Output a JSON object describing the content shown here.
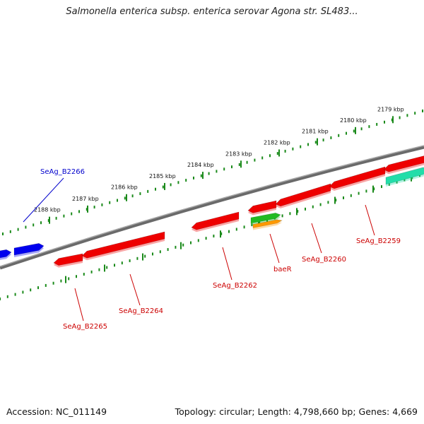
{
  "title": "Salmonella enterica subsp. enterica serovar Agona str. SL483...",
  "footer": {
    "accession": "Accession: NC_011149",
    "topology": "Topology: circular; Length: 4,798,660 bp; Genes: 4,669"
  },
  "colors": {
    "backbone": "#808080",
    "tick": "#1a8a1a",
    "gene_red": "#ee0000",
    "gene_blue": "#0000ee",
    "gene_green": "#22bb22",
    "gene_orange": "#ff9900",
    "gene_teal": "#22ddaa",
    "label_red": "#cc0000",
    "label_blue": "#0000cc"
  },
  "kbp_ticks": [
    "2188 kbp",
    "2187 kbp",
    "2186 kbp",
    "2185 kbp",
    "2184 kbp",
    "2183 kbp",
    "2182 kbp",
    "2181 kbp",
    "2180 kbp",
    "2179 kbp"
  ],
  "gene_labels": [
    {
      "name": "SeAg_B2266",
      "color": "blue"
    },
    {
      "name": "SeAg_B2265",
      "color": "red"
    },
    {
      "name": "SeAg_B2264",
      "color": "red"
    },
    {
      "name": "SeAg_B2262",
      "color": "red"
    },
    {
      "name": "baeR",
      "color": "red"
    },
    {
      "name": "SeAg_B2260",
      "color": "red"
    },
    {
      "name": "SeAg_B2259",
      "color": "red"
    }
  ]
}
